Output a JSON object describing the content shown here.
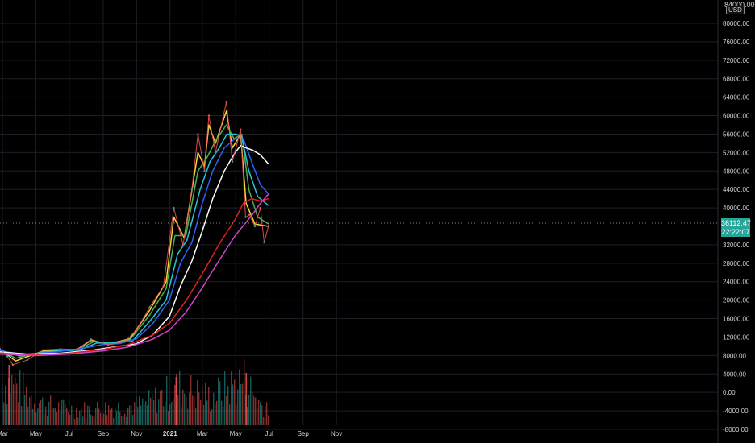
{
  "chart_data": {
    "type": "line",
    "currency": "USD",
    "top_label": "84000.00",
    "last_price": "36112.47",
    "countdown": "22:22:07",
    "y_ticks": [
      "80000.00",
      "76000.00",
      "72000.00",
      "68000.00",
      "64000.00",
      "60000.00",
      "56000.00",
      "52000.00",
      "48000.00",
      "44000.00",
      "40000.00",
      "32000.00",
      "28000.00",
      "24000.00",
      "20000.00",
      "16000.00",
      "12000.00",
      "8000.00",
      "4000.00",
      "0.00",
      "-4000.00",
      "-8000.00"
    ],
    "x_ticks": [
      "Mar",
      "May",
      "Jul",
      "Sep",
      "Nov",
      "2021",
      "Mar",
      "May",
      "Jul",
      "Sep",
      "Nov"
    ],
    "ylim": [
      -8000,
      84000
    ],
    "colors": {
      "up": "#26a69a",
      "down": "#ef5350",
      "fast_ma": "#f5d33f",
      "mid_ma": "#4caf50",
      "ma_cyan": "#26c6da",
      "ma_blue": "#2962ff",
      "ma_white": "#ffffff",
      "ma_red": "#e01e1e",
      "ma_magenta": "#d043c6",
      "grid": "#1c1f26",
      "axis_text": "#d1d4dc"
    },
    "price": {
      "x": [
        "2020-02-25",
        "2020-03-10",
        "2020-03-20",
        "2020-04-15",
        "2020-05-15",
        "2020-06-15",
        "2020-07-15",
        "2020-08-10",
        "2020-09-10",
        "2020-10-10",
        "2020-11-01",
        "2020-11-25",
        "2020-12-20",
        "2021-01-08",
        "2021-01-25",
        "2021-02-10",
        "2021-02-21",
        "2021-03-05",
        "2021-03-13",
        "2021-03-25",
        "2021-04-14",
        "2021-04-25",
        "2021-05-10",
        "2021-05-19",
        "2021-05-26",
        "2021-06-05",
        "2021-06-15",
        "2021-06-22",
        "2021-06-30"
      ],
      "y": [
        9500,
        7800,
        6000,
        7000,
        9200,
        9400,
        9300,
        11500,
        10300,
        11000,
        13500,
        18500,
        23000,
        40000,
        32000,
        44000,
        56000,
        48000,
        60000,
        52000,
        63000,
        50000,
        57000,
        38000,
        38500,
        36000,
        40000,
        32500,
        36112
      ]
    },
    "series": [
      {
        "name": "",
        "color": "#f5d33f",
        "x": [
          "2020-02-25",
          "2020-03-25",
          "2020-05-15",
          "2020-07-15",
          "2020-08-10",
          "2020-09-10",
          "2020-10-20",
          "2020-11-25",
          "2020-12-25",
          "2021-01-08",
          "2021-01-27",
          "2021-02-21",
          "2021-03-05",
          "2021-03-13",
          "2021-03-25",
          "2021-04-14",
          "2021-04-25",
          "2021-05-10",
          "2021-05-20",
          "2021-06-05",
          "2021-06-30"
        ],
        "y": [
          9400,
          6800,
          9000,
          9300,
          11300,
          10500,
          11600,
          17800,
          24000,
          38000,
          33500,
          52000,
          49000,
          58000,
          54000,
          61000,
          53000,
          56000,
          41000,
          36500,
          36000
        ]
      },
      {
        "name": "",
        "color": "#4caf50",
        "x": [
          "2020-02-25",
          "2020-03-25",
          "2020-05-15",
          "2020-07-15",
          "2020-08-15",
          "2020-09-15",
          "2020-10-20",
          "2020-11-25",
          "2020-12-25",
          "2021-01-10",
          "2021-01-30",
          "2021-02-21",
          "2021-03-10",
          "2021-03-25",
          "2021-04-14",
          "2021-04-28",
          "2021-05-12",
          "2021-05-25",
          "2021-06-10",
          "2021-06-30"
        ],
        "y": [
          9300,
          7400,
          8800,
          9200,
          11000,
          10600,
          11400,
          16800,
          22500,
          34000,
          34000,
          48000,
          51000,
          54500,
          58000,
          55000,
          56000,
          44000,
          38000,
          36500
        ]
      },
      {
        "name": "",
        "color": "#26c6da",
        "x": [
          "2020-02-25",
          "2020-04-01",
          "2020-06-01",
          "2020-07-20",
          "2020-08-20",
          "2020-09-20",
          "2020-10-25",
          "2020-11-25",
          "2020-12-25",
          "2021-01-15",
          "2021-02-01",
          "2021-02-25",
          "2021-03-15",
          "2021-04-01",
          "2021-04-15",
          "2021-05-01",
          "2021-05-12",
          "2021-05-25",
          "2021-06-10",
          "2021-06-30"
        ],
        "y": [
          9200,
          7900,
          8900,
          9200,
          10700,
          10700,
          11200,
          15400,
          20000,
          30000,
          33000,
          44000,
          50000,
          53000,
          56000,
          56000,
          55500,
          48000,
          42500,
          40500
        ]
      },
      {
        "name": "",
        "color": "#2962ff",
        "x": [
          "2020-02-25",
          "2020-04-10",
          "2020-06-10",
          "2020-08-01",
          "2020-09-01",
          "2020-10-01",
          "2020-11-01",
          "2020-12-01",
          "2020-12-31",
          "2021-01-20",
          "2021-02-10",
          "2021-03-01",
          "2021-03-20",
          "2021-04-10",
          "2021-04-30",
          "2021-05-15",
          "2021-05-30",
          "2021-06-15",
          "2021-06-30"
        ],
        "y": [
          9000,
          8200,
          8800,
          9700,
          10400,
          10600,
          11600,
          15000,
          20000,
          28000,
          32500,
          41000,
          48000,
          53000,
          55000,
          55000,
          50000,
          45000,
          43000
        ]
      },
      {
        "name": "",
        "color": "#ffffff",
        "x": [
          "2020-02-25",
          "2020-04-15",
          "2020-06-15",
          "2020-08-15",
          "2020-09-30",
          "2020-10-31",
          "2020-11-30",
          "2020-12-31",
          "2021-01-20",
          "2021-02-10",
          "2021-03-01",
          "2021-03-20",
          "2021-04-10",
          "2021-04-30",
          "2021-05-10",
          "2021-05-20",
          "2021-06-01",
          "2021-06-15",
          "2021-06-30"
        ],
        "y": [
          8800,
          8300,
          8500,
          9200,
          10000,
          10500,
          12400,
          16500,
          23000,
          28500,
          35000,
          42000,
          48000,
          52000,
          53500,
          53000,
          52500,
          51500,
          49500
        ]
      },
      {
        "name": "",
        "color": "#e01e1e",
        "x": [
          "2020-02-25",
          "2020-05-01",
          "2020-07-01",
          "2020-09-01",
          "2020-10-15",
          "2020-11-30",
          "2020-12-31",
          "2021-01-31",
          "2021-02-28",
          "2021-03-31",
          "2021-04-30",
          "2021-05-15",
          "2021-05-30",
          "2021-06-15",
          "2021-06-30"
        ],
        "y": [
          8500,
          8100,
          8500,
          9300,
          10300,
          12400,
          15000,
          20000,
          25500,
          32000,
          37500,
          41000,
          42000,
          41500,
          42000
        ]
      },
      {
        "name": "",
        "color": "#d043c6",
        "x": [
          "2020-02-25",
          "2020-05-01",
          "2020-07-01",
          "2020-09-01",
          "2020-10-15",
          "2020-11-30",
          "2020-12-31",
          "2021-01-31",
          "2021-02-28",
          "2021-03-31",
          "2021-04-30",
          "2021-05-31",
          "2021-06-15",
          "2021-06-30"
        ],
        "y": [
          8300,
          8000,
          8300,
          9000,
          9800,
          11500,
          13500,
          17500,
          22500,
          28500,
          34000,
          38500,
          41000,
          43000
        ]
      }
    ],
    "volume": {
      "x": [
        "2020-03",
        "2020-05",
        "2020-07",
        "2020-09",
        "2020-11",
        "2021-01",
        "2021-03",
        "2021-05",
        "2021-06"
      ],
      "y": [
        17000,
        8000,
        6000,
        7000,
        8000,
        15000,
        11000,
        18000,
        8000
      ]
    },
    "volume_spikes": [
      {
        "x": "2020-03-12",
        "y": 15000
      },
      {
        "x": "2021-01-11",
        "y": 12000
      },
      {
        "x": "2021-05-19",
        "y": 13000
      }
    ]
  }
}
